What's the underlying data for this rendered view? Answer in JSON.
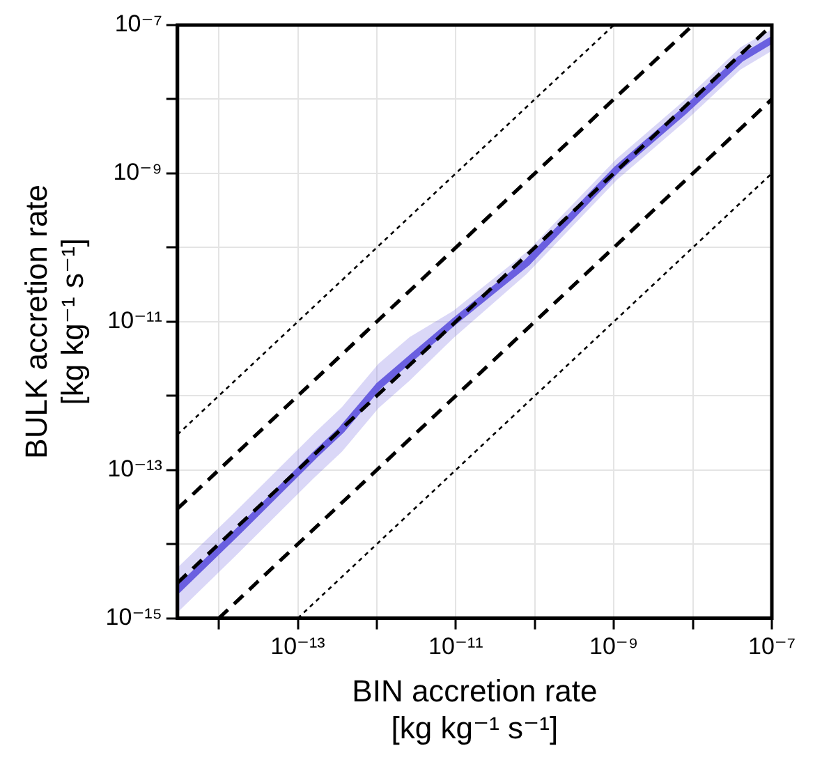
{
  "chart_data": {
    "type": "line",
    "xlabel": "BIN accretion rate\n[kg kg⁻¹ s⁻¹]",
    "ylabel": "BULK accretion rate\n[kg kg⁻¹ s⁻¹]",
    "log": "xy",
    "grid": true,
    "legend": false,
    "marker": "none",
    "xlim": [
      3e-15,
      1e-07
    ],
    "ylim": [
      1e-15,
      1e-07
    ],
    "xticks": [
      {
        "value": 1e-14,
        "label": null
      },
      {
        "value": 1e-13,
        "label": "10⁻¹³"
      },
      {
        "value": 1e-12,
        "label": null
      },
      {
        "value": 1e-11,
        "label": "10⁻¹¹"
      },
      {
        "value": 1e-10,
        "label": null
      },
      {
        "value": 1e-09,
        "label": "10⁻⁹"
      },
      {
        "value": 1e-08,
        "label": null
      },
      {
        "value": 1e-07,
        "label": "10⁻⁷"
      }
    ],
    "yticks": [
      {
        "value": 1e-15,
        "label": "10⁻¹⁵"
      },
      {
        "value": 1e-14,
        "label": null
      },
      {
        "value": 1e-13,
        "label": "10⁻¹³"
      },
      {
        "value": 1e-12,
        "label": null
      },
      {
        "value": 1e-11,
        "label": "10⁻¹¹"
      },
      {
        "value": 1e-10,
        "label": null
      },
      {
        "value": 1e-09,
        "label": "10⁻⁹"
      },
      {
        "value": 1e-08,
        "label": null
      },
      {
        "value": 1e-07,
        "label": "10⁻⁷"
      }
    ],
    "series": [
      {
        "color": "#000000",
        "line_style": "dashed",
        "x": [
          3e-15,
          1e-07
        ],
        "values": [
          3e-15,
          1e-07
        ]
      },
      {
        "color": "#6a5fe0",
        "line_style": "solid",
        "x": [
          3e-15,
          1.6e-14,
          1.6e-13,
          3.6e-13,
          1.05e-12,
          2.6e-12,
          9.3e-12,
          7.9e-11,
          1.1e-09,
          8.1e-09,
          4e-08,
          1e-07
        ],
        "values": [
          2.4e-15,
          1.35e-14,
          1.55e-13,
          3.5e-13,
          1.35e-12,
          3.1e-12,
          9.8e-12,
          6.2e-11,
          1.15e-09,
          7.2e-09,
          3.5e-08,
          6.3e-08
        ],
        "lower": [
          1.2e-15,
          6.8e-15,
          7.8e-14,
          1.75e-13,
          6.8e-13,
          1.6e-12,
          6e-12,
          4.4e-11,
          8.2e-10,
          5.1e-09,
          2.5e-08,
          4.5e-08
        ],
        "upper": [
          4.8e-15,
          2.7e-14,
          3.1e-13,
          7e-13,
          2.7e-12,
          6.2e-12,
          1.4e-11,
          8.7e-11,
          1.6e-09,
          1e-08,
          5e-08,
          8.8e-08
        ]
      },
      {
        "color": "#000000",
        "line_style": "dashed",
        "x": [
          3e-15,
          1e-08
        ],
        "values": [
          3e-14,
          1e-07
        ]
      },
      {
        "color": "#000000",
        "line_style": "dashed",
        "x": [
          1e-14,
          1e-07
        ],
        "values": [
          1e-15,
          1e-08
        ]
      },
      {
        "color": "#000000",
        "line_style": "dotted",
        "x": [
          3e-15,
          1e-09
        ],
        "values": [
          3e-13,
          1e-07
        ]
      },
      {
        "color": "#000000",
        "line_style": "dotted",
        "x": [
          1e-13,
          1e-07
        ],
        "values": [
          1e-15,
          1e-09
        ]
      }
    ]
  }
}
